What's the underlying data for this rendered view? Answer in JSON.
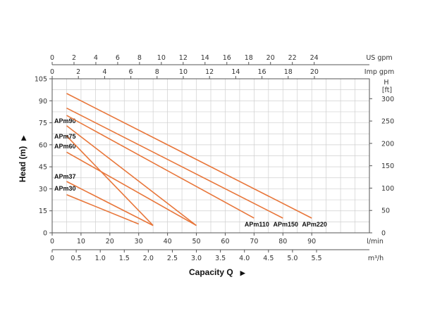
{
  "chart_data": {
    "type": "line",
    "ylabel": "Head (m)",
    "xlabel": "Capacity Q",
    "arrow_glyph": "▶",
    "xlim": [
      0,
      110
    ],
    "ylim": [
      0,
      105
    ],
    "grid": true,
    "colors": {
      "series": "#e8763a",
      "grid": "#cfcfcf",
      "axis": "#555555"
    },
    "y_ticks": [
      "0",
      "15",
      "30",
      "45",
      "60",
      "75",
      "90",
      "105"
    ],
    "x_ticks_lmin": [
      "0",
      "10",
      "20",
      "30",
      "40",
      "50",
      "60",
      "70",
      "80",
      "90",
      "l/min"
    ],
    "x_ticks_m3h": [
      "0",
      "0.5",
      "1.0",
      "1.5",
      "2.0",
      "2.5",
      "3.0",
      "3.5",
      "4.0",
      "4.5",
      "5.0",
      "5.5",
      "m³/h"
    ],
    "x_ticks_imp": [
      "0",
      "2",
      "4",
      "6",
      "8",
      "10",
      "12",
      "14",
      "16",
      "18",
      "20",
      "Imp gpm"
    ],
    "x_ticks_us": [
      "0",
      "2",
      "4",
      "6",
      "8",
      "10",
      "12",
      "14",
      "16",
      "18",
      "20",
      "22",
      "24",
      "US gpm"
    ],
    "right_axis": {
      "unit": "H",
      "unit2": "[ft]",
      "ticks": [
        "0",
        "50",
        "100",
        "150",
        "200",
        "250",
        "300"
      ]
    },
    "series": [
      {
        "name": "APm30",
        "points": [
          [
            5,
            26
          ],
          [
            30,
            6
          ]
        ]
      },
      {
        "name": "APm37",
        "points": [
          [
            5,
            35
          ],
          [
            35,
            5
          ]
        ]
      },
      {
        "name": "APm60",
        "points": [
          [
            5,
            55
          ],
          [
            50,
            5
          ]
        ]
      },
      {
        "name": "APm75",
        "points": [
          [
            5,
            66
          ],
          [
            35,
            5
          ]
        ]
      },
      {
        "name": "APm90",
        "points": [
          [
            5,
            73
          ],
          [
            50,
            5
          ]
        ]
      },
      {
        "name": "APm110",
        "points": [
          [
            5,
            80
          ],
          [
            70,
            10
          ]
        ]
      },
      {
        "name": "APm150",
        "points": [
          [
            5,
            85
          ],
          [
            80,
            10
          ]
        ]
      },
      {
        "name": "APm220",
        "points": [
          [
            5,
            95
          ],
          [
            90,
            10
          ]
        ]
      }
    ]
  }
}
